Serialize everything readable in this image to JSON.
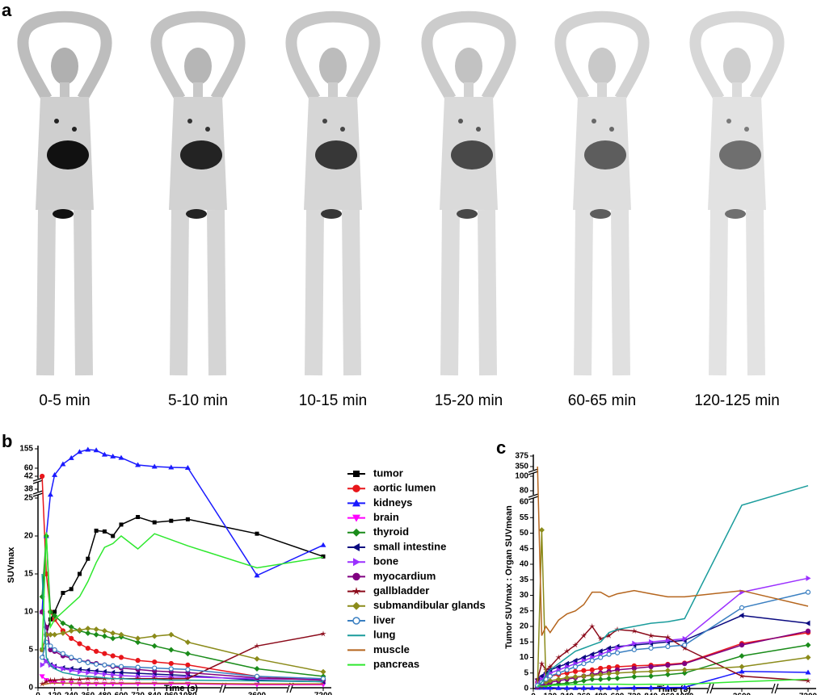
{
  "panel_a": {
    "label": "a",
    "frames": [
      "0-5 min",
      "5-10 min",
      "10-15 min",
      "15-20 min",
      "60-65 min",
      "120-125 min"
    ]
  },
  "chart_data": [
    {
      "type": "line",
      "panel_label": "b",
      "y_label": "SUVmax",
      "x_label": "Time (s)",
      "x": [
        30,
        60,
        90,
        120,
        180,
        240,
        300,
        360,
        420,
        480,
        540,
        600,
        720,
        840,
        960,
        1080,
        3600,
        7200
      ],
      "xticks": [
        0,
        120,
        240,
        360,
        480,
        600,
        720,
        840,
        960,
        1080,
        3600,
        7200
      ],
      "yticks": [
        0,
        5,
        10,
        15,
        20,
        25,
        38,
        42,
        60,
        155
      ],
      "xlim": [
        0,
        7200
      ],
      "ylim": [
        0,
        155
      ],
      "series": [
        {
          "name": "tumor",
          "color": "#000000",
          "marker": "square",
          "values": [
            5,
            7,
            9,
            10,
            12.5,
            13,
            15,
            17,
            20.7,
            20.6,
            20,
            21.5,
            22.5,
            21.8,
            22,
            22.2,
            20.3,
            17.3
          ]
        },
        {
          "name": "aortic lumen",
          "color": "#e8161b",
          "marker": "circle",
          "values": [
            42,
            15,
            10,
            9,
            7.5,
            6.5,
            5.8,
            5.2,
            4.8,
            4.5,
            4.2,
            4,
            3.6,
            3.4,
            3.2,
            3,
            1.5,
            1
          ]
        },
        {
          "name": "kidneys",
          "color": "#1a1aff",
          "marker": "triangle-up",
          "values": [
            10,
            20,
            30,
            45,
            80,
            110,
            140,
            151,
            148,
            127,
            118,
            111,
            76,
            68,
            64,
            62,
            14.8,
            18.8
          ]
        },
        {
          "name": "brain",
          "color": "#ff00ff",
          "marker": "triangle-down",
          "values": [
            1.5,
            1,
            0.8,
            0.7,
            0.6,
            0.6,
            0.5,
            0.5,
            0.5,
            0.5,
            0.5,
            0.5,
            0.5,
            0.5,
            0.5,
            0.5,
            0.4,
            0.4
          ]
        },
        {
          "name": "thyroid",
          "color": "#1a8c1a",
          "marker": "diamond",
          "values": [
            12,
            20,
            10,
            9.5,
            8.5,
            8,
            7.5,
            7.2,
            7,
            6.8,
            6.5,
            6.7,
            6,
            5.5,
            5,
            4.5,
            2.5,
            1.5
          ]
        },
        {
          "name": "small intestine",
          "color": "#0a0a80",
          "marker": "triangle-left",
          "values": [
            4,
            3.5,
            3,
            2.8,
            2.6,
            2.5,
            2.4,
            2.3,
            2.2,
            2.1,
            2,
            2,
            1.9,
            1.8,
            1.7,
            1.6,
            1,
            0.8
          ]
        },
        {
          "name": "bone",
          "color": "#9b30ff",
          "marker": "triangle-right",
          "values": [
            3,
            3.5,
            3,
            2.8,
            2.5,
            2.3,
            2.1,
            2,
            1.9,
            1.8,
            1.7,
            1.6,
            1.5,
            1.5,
            1.4,
            1.4,
            1.2,
            1.1
          ]
        },
        {
          "name": "myocardium",
          "color": "#800080",
          "marker": "circle",
          "values": [
            10,
            8,
            5,
            4.8,
            4.2,
            3.9,
            3.6,
            3.4,
            3.2,
            3,
            2.8,
            2.6,
            2.4,
            2.2,
            2.1,
            2,
            1.3,
            1
          ]
        },
        {
          "name": "gallbladder",
          "color": "#8b0a1a",
          "marker": "star",
          "values": [
            0.5,
            0.8,
            1,
            1,
            1.1,
            1.1,
            1.1,
            1.2,
            1.2,
            1.2,
            1.2,
            1.2,
            1.2,
            1.2,
            1.2,
            1.2,
            5.5,
            7.1
          ]
        },
        {
          "name": "submandibular glands",
          "color": "#8b8b1a",
          "marker": "diamond",
          "values": [
            5,
            7,
            7,
            7,
            7.2,
            7.5,
            7.6,
            7.8,
            7.7,
            7.5,
            7.2,
            7,
            6.5,
            6.8,
            7,
            6,
            3.8,
            2.1
          ]
        },
        {
          "name": "liver",
          "color": "#3a7fc1",
          "marker": "open-circle",
          "values": [
            4,
            6,
            5.5,
            5,
            4.5,
            4,
            3.6,
            3.3,
            3.1,
            3,
            2.9,
            2.8,
            2.7,
            2.6,
            2.5,
            2.4,
            1.5,
            1.2
          ]
        },
        {
          "name": "lung",
          "color": "#1a9c9c",
          "marker": "none",
          "values": [
            15,
            4,
            3,
            2.5,
            2,
            1.8,
            1.6,
            1.5,
            1.4,
            1.3,
            1.2,
            1.2,
            1.1,
            1.1,
            1,
            1,
            0.9,
            0.8
          ]
        },
        {
          "name": "muscle",
          "color": "#b5651d",
          "marker": "none",
          "values": [
            0.4,
            0.5,
            0.6,
            0.6,
            0.6,
            0.6,
            0.6,
            0.6,
            0.6,
            0.6,
            0.6,
            0.6,
            0.6,
            0.6,
            0.6,
            0.6,
            0.5,
            0.5
          ]
        },
        {
          "name": "pancreas",
          "color": "#2ee82e",
          "marker": "none",
          "values": [
            5,
            20.5,
            8,
            9,
            10,
            11,
            12,
            14,
            16.5,
            18.5,
            19,
            20,
            18.3,
            20.3,
            19.5,
            18.7,
            15.8,
            17.2
          ]
        }
      ]
    },
    {
      "type": "line",
      "panel_label": "c",
      "y_label": "Tumor SUVmax : Organ SUVmean",
      "x_label": "Time (s)",
      "x": [
        30,
        60,
        90,
        120,
        180,
        240,
        300,
        360,
        420,
        480,
        540,
        600,
        720,
        840,
        960,
        1080,
        3600,
        7200
      ],
      "xticks": [
        0,
        120,
        240,
        360,
        480,
        600,
        720,
        840,
        960,
        1080,
        3600,
        7200
      ],
      "yticks": [
        0,
        5,
        10,
        15,
        20,
        25,
        30,
        35,
        40,
        45,
        50,
        55,
        60,
        80,
        100,
        350,
        375
      ],
      "xlim": [
        0,
        7200
      ],
      "ylim": [
        0,
        375
      ],
      "series": [
        {
          "color": "#e8161b",
          "marker": "circle",
          "values": [
            2,
            3,
            3.5,
            4,
            4.5,
            5,
            5.5,
            5.8,
            6,
            6.5,
            6.8,
            7,
            7.3,
            7.5,
            7.8,
            8.2,
            14.5,
            18
          ]
        },
        {
          "color": "#1a1aff",
          "marker": "triangle-up",
          "values": [
            0.3,
            0.3,
            0.3,
            0.3,
            0.2,
            0.2,
            0.2,
            0.2,
            0.2,
            0.2,
            0.2,
            0.2,
            0.3,
            0.3,
            0.3,
            0.4,
            5.5,
            5.2
          ]
        },
        {
          "color": "#1a8c1a",
          "marker": "diamond",
          "values": [
            0.5,
            0.7,
            1,
            1.2,
            1.5,
            1.7,
            2,
            2.5,
            3,
            3,
            3.2,
            3.3,
            3.8,
            4,
            4.5,
            5,
            10.5,
            14
          ]
        },
        {
          "color": "#0a0a80",
          "marker": "triangle-left",
          "values": [
            3,
            4,
            5,
            6,
            7,
            8,
            9,
            10,
            11,
            12,
            13,
            13.5,
            14,
            14.5,
            15,
            15.5,
            23.5,
            21
          ]
        },
        {
          "color": "#9b30ff",
          "marker": "triangle-right",
          "values": [
            2,
            3,
            4,
            5,
            6,
            7,
            8,
            9,
            10,
            11,
            12,
            13,
            14.5,
            15,
            15.5,
            16,
            31,
            35.5
          ]
        },
        {
          "color": "#800080",
          "marker": "circle",
          "values": [
            0.5,
            1,
            1.5,
            2,
            2.5,
            3,
            3.5,
            4,
            4.5,
            5,
            5.5,
            6,
            6.5,
            7,
            7.5,
            8,
            14,
            18.5
          ]
        },
        {
          "color": "#8b0a1a",
          "marker": "star",
          "values": [
            3,
            8,
            6,
            7,
            10,
            12,
            14,
            17,
            20,
            16,
            17,
            19,
            18.5,
            17,
            16.5,
            13,
            4,
            2.5
          ]
        },
        {
          "color": "#8b8b1a",
          "marker": "diamond",
          "values": [
            1,
            51,
            2,
            2.5,
            3,
            3.5,
            3.8,
            4,
            4.2,
            4.5,
            4.8,
            5,
            5.3,
            5.5,
            5.8,
            6,
            7,
            10
          ]
        },
        {
          "color": "#3a7fc1",
          "marker": "open-circle",
          "values": [
            1,
            2,
            3,
            4,
            5,
            6,
            7,
            8,
            9,
            10,
            11,
            11.5,
            12.5,
            13,
            13.5,
            14,
            26,
            31
          ]
        },
        {
          "color": "#1a9c9c",
          "marker": "none",
          "values": [
            0.5,
            2,
            4,
            6,
            8,
            10,
            12,
            13,
            14,
            15,
            18,
            19,
            20,
            21,
            21.5,
            22.5,
            59,
            87
          ]
        },
        {
          "color": "#b5651d",
          "marker": "none",
          "values": [
            350,
            17,
            20,
            18,
            22,
            24,
            25,
            27,
            31,
            31,
            29.5,
            30.5,
            31.5,
            30.5,
            29.5,
            29.5,
            31.5,
            26.5
          ]
        },
        {
          "color": "#2ee82e",
          "marker": "none",
          "values": [
            1,
            0.7,
            0.8,
            1,
            1.1,
            1.2,
            1.3,
            1.3,
            1.4,
            1.4,
            1.4,
            1.4,
            1.3,
            1.4,
            1.3,
            1.4,
            2.2,
            3
          ]
        }
      ]
    }
  ]
}
